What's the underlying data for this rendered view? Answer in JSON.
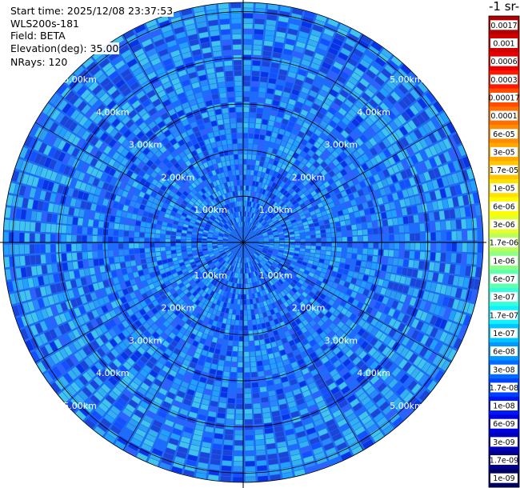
{
  "info": {
    "start_time": "Start time: 2025/12/08 23:37:53",
    "instrument": "WLS200s-181",
    "field": "Field: BETA",
    "elevation": "Elevation(deg): 35.00",
    "nrays": "NRays: 120"
  },
  "chart_data": {
    "type": "heatmap",
    "projection": "polar (PPI)",
    "n_rays": 120,
    "range_rings": [
      {
        "label": "1.00km",
        "value": 1.0
      },
      {
        "label": "2.00km",
        "value": 2.0
      },
      {
        "label": "3.00km",
        "value": 3.0
      },
      {
        "label": "4.00km",
        "value": 4.0
      },
      {
        "label": "5.00km",
        "value": 5.0
      }
    ],
    "max_range_km": 5.2,
    "colorbar": {
      "title": "-1 sr-",
      "ticks": [
        "0.0017",
        "0.001",
        "0.0006",
        "0.0003",
        "0.00017",
        "0.0001",
        "6e-05",
        "3e-05",
        "1.7e-05",
        "1e-05",
        "6e-06",
        "3e-06",
        "1.7e-06",
        "1e-06",
        "6e-07",
        "3e-07",
        "1.7e-07",
        "1e-07",
        "6e-08",
        "3e-08",
        "1.7e-08",
        "1e-08",
        "6e-09",
        "3e-09",
        "1.7e-09",
        "1e-09"
      ],
      "colors": [
        "#b00000",
        "#d00000",
        "#e80000",
        "#ff1800",
        "#ff4c00",
        "#ff7000",
        "#ff8c00",
        "#ffa800",
        "#ffc600",
        "#ffe000",
        "#fffc00",
        "#e4ff2c",
        "#b8ff58",
        "#8cff84",
        "#60ffb0",
        "#34ffd8",
        "#10f0ff",
        "#00c4ff",
        "#0098ff",
        "#006cff",
        "#0040ff",
        "#0018f8",
        "#0000dc",
        "#0000b8",
        "#00008c",
        "#000060"
      ]
    }
  }
}
